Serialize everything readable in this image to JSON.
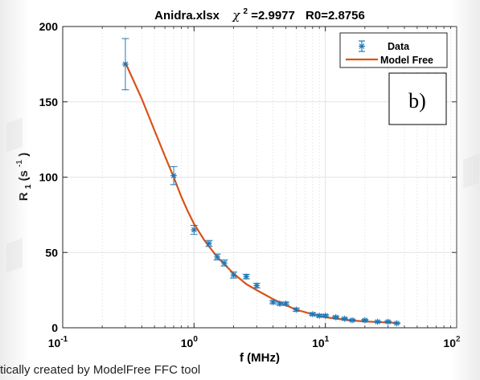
{
  "figure": {
    "caption": "tically created by ModelFree FFC tool"
  },
  "chart_data": {
    "type": "scatter",
    "title_file": "Anidra.xlsx",
    "title_chi_label": "χ",
    "title_chi_exp": "2",
    "title_chi_value": "=2.9977",
    "title_r0": "R0=2.8756",
    "panel_label": "b)",
    "xlabel": "f  (MHz)",
    "ylabel_main": "R",
    "ylabel_sub": "1",
    "ylabel_unit_open": " (s",
    "ylabel_unit_exp": "-1",
    "ylabel_unit_close": ")",
    "xscale": "log",
    "xlim": [
      0.1,
      100
    ],
    "ylim": [
      0,
      200
    ],
    "grid": true,
    "legend_position": "top-right",
    "x_ticks": [
      {
        "base": "10",
        "exp": "-1",
        "value": 0.1
      },
      {
        "base": "10",
        "exp": "0",
        "value": 1
      },
      {
        "base": "10",
        "exp": "1",
        "value": 10
      },
      {
        "base": "10",
        "exp": "2",
        "value": 100
      }
    ],
    "y_ticks": [
      {
        "label": "0",
        "value": 0
      },
      {
        "label": "50",
        "value": 50
      },
      {
        "label": "100",
        "value": 100
      },
      {
        "label": "150",
        "value": 150
      },
      {
        "label": "200",
        "value": 200
      }
    ],
    "series": [
      {
        "name": "Data",
        "kind": "errorbar",
        "color": "#1f77b4",
        "x": [
          0.3,
          0.7,
          1.0,
          1.3,
          1.5,
          1.7,
          2.0,
          2.5,
          3.0,
          4.0,
          4.5,
          5.0,
          6.0,
          8.0,
          9.0,
          10.0,
          12.0,
          14.0,
          16.0,
          20.0,
          25.0,
          30.0,
          35.0
        ],
        "y": [
          175,
          101,
          65,
          56,
          47,
          43,
          35,
          34,
          28,
          17,
          16,
          16,
          12,
          9,
          8,
          8,
          7,
          6,
          5,
          5,
          4,
          4,
          3
        ],
        "err": [
          17,
          6,
          3,
          2,
          2,
          2,
          2,
          1.5,
          1.5,
          1,
          1,
          1,
          1,
          0.8,
          0.8,
          0.7,
          0.6,
          0.5,
          0.5,
          0.5,
          0.4,
          0.4,
          0.3
        ]
      },
      {
        "name": "Model Free",
        "kind": "line",
        "color": "#d95319",
        "x": [
          0.3,
          0.4,
          0.5,
          0.6,
          0.7,
          0.8,
          0.9,
          1.0,
          1.2,
          1.5,
          2.0,
          2.5,
          3.0,
          4.0,
          5.0,
          6.0,
          8.0,
          10.0,
          15.0,
          20.0,
          30.0,
          35.0
        ],
        "y": [
          176,
          152,
          131,
          114,
          100,
          87,
          77,
          69,
          58,
          47,
          36,
          29,
          25,
          19,
          15,
          12,
          9,
          7,
          5,
          4.2,
          3.5,
          3.2
        ]
      }
    ]
  }
}
